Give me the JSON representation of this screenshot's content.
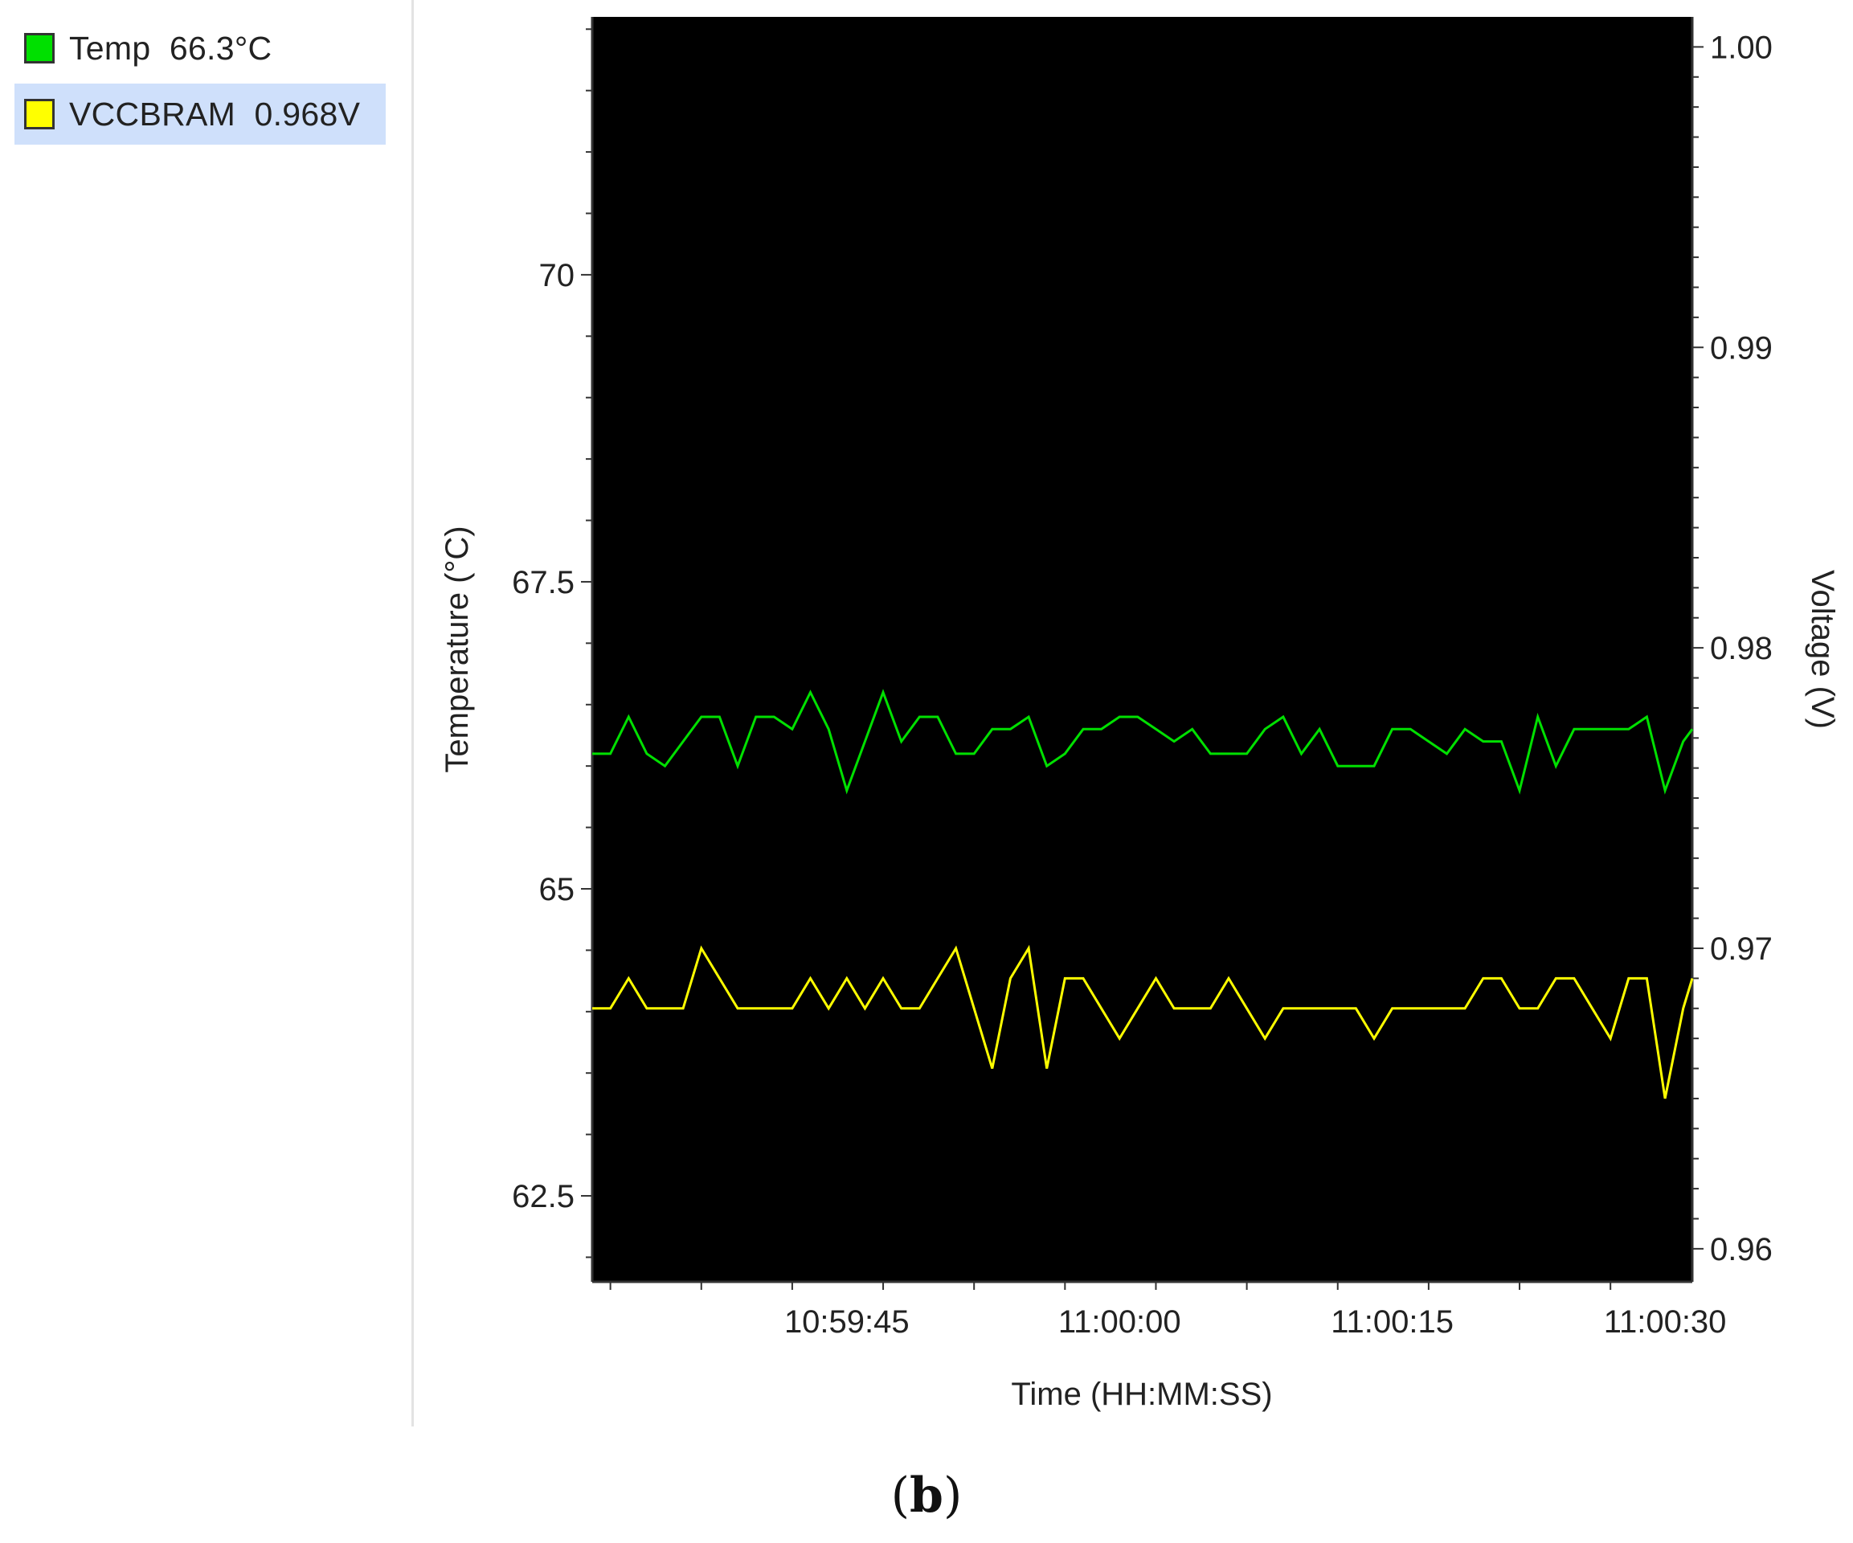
{
  "legend": {
    "items": [
      {
        "label": "Temp  66.3°C",
        "color": "#00e000",
        "selected": false
      },
      {
        "label": "VCCBRAM  0.968V",
        "color": "#ffff00",
        "selected": true
      }
    ]
  },
  "caption": {
    "open": "(",
    "letter": "b",
    "close": ")"
  },
  "chart_data": {
    "type": "line",
    "background": "#000000",
    "grid": false,
    "legend_placement": "left",
    "xlabel": "Time (HH:MM:SS)",
    "ylabel_left": "Temperature (°C)",
    "ylabel_right": "Voltage (V)",
    "x_tick_labels": [
      "10:59:45",
      "11:00:00",
      "11:00:15",
      "11:00:30"
    ],
    "x_tick_values": [
      34,
      49,
      64,
      79
    ],
    "xlim": [
      20,
      80.5
    ],
    "yticks_left": [
      62.5,
      65,
      67.5,
      70
    ],
    "yticks_left_labels": [
      "62.5",
      "65",
      "67.5",
      "70"
    ],
    "ylim_left": [
      61.8,
      72.1
    ],
    "yticks_right": [
      0.96,
      0.97,
      0.98,
      0.99,
      1.0
    ],
    "yticks_right_labels": [
      "0.96",
      "0.97",
      "0.98",
      "0.99",
      "1.00"
    ],
    "ylim_right": [
      0.9589,
      1.001
    ],
    "x": [
      20,
      21,
      22,
      23,
      24,
      25,
      26,
      27,
      28,
      29,
      30,
      31,
      32,
      33,
      34,
      35,
      36,
      37,
      38,
      39,
      40,
      41,
      42,
      43,
      44,
      45,
      46,
      47,
      48,
      49,
      50,
      51,
      52,
      53,
      54,
      55,
      56,
      57,
      58,
      59,
      60,
      61,
      62,
      63,
      64,
      65,
      66,
      67,
      68,
      69,
      70,
      71,
      72,
      73,
      74,
      75,
      76,
      77,
      78,
      79,
      80,
      80.5
    ],
    "series": [
      {
        "name": "Temp",
        "axis": "left",
        "color": "#00e000",
        "values": [
          66.1,
          66.1,
          66.4,
          66.1,
          66.0,
          66.2,
          66.4,
          66.4,
          66.0,
          66.4,
          66.4,
          66.3,
          66.6,
          66.3,
          65.8,
          66.2,
          66.6,
          66.2,
          66.4,
          66.4,
          66.1,
          66.1,
          66.3,
          66.3,
          66.4,
          66.0,
          66.1,
          66.3,
          66.3,
          66.4,
          66.4,
          66.3,
          66.2,
          66.3,
          66.1,
          66.1,
          66.1,
          66.3,
          66.4,
          66.1,
          66.3,
          66.0,
          66.0,
          66.0,
          66.3,
          66.3,
          66.2,
          66.1,
          66.3,
          66.2,
          66.2,
          65.8,
          66.4,
          66.0,
          66.3,
          66.3,
          66.3,
          66.3,
          66.4,
          65.8,
          66.2,
          66.3
        ]
      },
      {
        "name": "VCCBRAM",
        "axis": "right",
        "color": "#ffff00",
        "values": [
          0.968,
          0.968,
          0.969,
          0.968,
          0.968,
          0.968,
          0.97,
          0.969,
          0.968,
          0.968,
          0.968,
          0.968,
          0.969,
          0.968,
          0.969,
          0.968,
          0.969,
          0.968,
          0.968,
          0.969,
          0.97,
          0.968,
          0.966,
          0.969,
          0.97,
          0.966,
          0.969,
          0.969,
          0.968,
          0.967,
          0.968,
          0.969,
          0.968,
          0.968,
          0.968,
          0.969,
          0.968,
          0.967,
          0.968,
          0.968,
          0.968,
          0.968,
          0.968,
          0.967,
          0.968,
          0.968,
          0.968,
          0.968,
          0.968,
          0.969,
          0.969,
          0.968,
          0.968,
          0.969,
          0.969,
          0.968,
          0.967,
          0.969,
          0.969,
          0.965,
          0.968,
          0.969
        ]
      }
    ]
  }
}
